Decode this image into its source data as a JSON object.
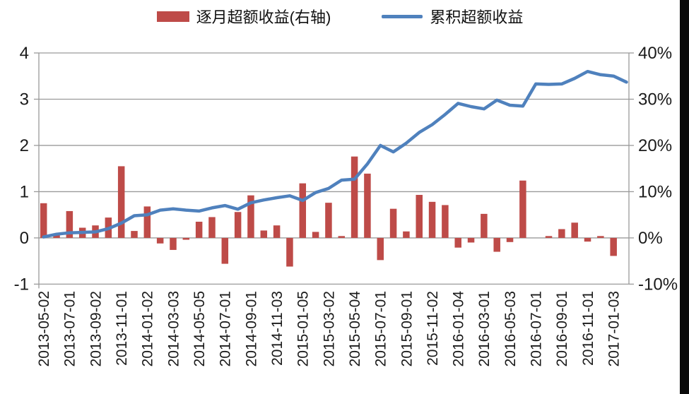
{
  "accent_colors": {
    "bar_red": "#be4b48",
    "line_blue": "#4f81bd",
    "grid_gray": "#9a9a9a",
    "text_dark": "#1a1a1a"
  },
  "legend": {
    "bar_series_label": "逐月超额收益(右轴)",
    "line_series_label": "累积超额收益"
  },
  "chart_data": {
    "type": "combo",
    "legend_position": "top",
    "grid": "horizontal",
    "categories": [
      "2013-05",
      "2013-06",
      "2013-07",
      "2013-08",
      "2013-09",
      "2013-10",
      "2013-11",
      "2013-12",
      "2014-01",
      "2014-02",
      "2014-03",
      "2014-04",
      "2014-05",
      "2014-06",
      "2014-07",
      "2014-08",
      "2014-09",
      "2014-10",
      "2014-11",
      "2014-12",
      "2015-01",
      "2015-02",
      "2015-03",
      "2015-04",
      "2015-05",
      "2015-06",
      "2015-07",
      "2015-08",
      "2015-09",
      "2015-10",
      "2015-11",
      "2015-12",
      "2016-01",
      "2016-02",
      "2016-03",
      "2016-04",
      "2016-05",
      "2016-06",
      "2016-07",
      "2016-08",
      "2016-09",
      "2016-10",
      "2016-11",
      "2016-12",
      "2017-01",
      "2017-02"
    ],
    "x_tick_labels": [
      "2013-05-02",
      "2013-07-01",
      "2013-09-02",
      "2013-11-01",
      "2014-01-02",
      "2014-03-03",
      "2014-05-05",
      "2014-07-01",
      "2014-09-01",
      "2014-11-03",
      "2015-01-05",
      "2015-03-02",
      "2015-05-04",
      "2015-07-01",
      "2015-09-01",
      "2015-11-02",
      "2016-01-04",
      "2016-03-01",
      "2016-05-03",
      "2016-07-01",
      "2016-09-01",
      "2016-11-01",
      "2017-01-03"
    ],
    "x_tick_every": 2,
    "series": [
      {
        "name": "逐月超额收益(右轴)",
        "type": "bar",
        "axis": "right",
        "unit": "%",
        "color": "#be4b48",
        "values": [
          7.5,
          0.9,
          5.8,
          2.2,
          2.7,
          4.4,
          15.5,
          1.5,
          6.8,
          -1.2,
          -2.6,
          -0.4,
          3.5,
          4.5,
          -5.6,
          5.6,
          9.2,
          1.6,
          2.7,
          -6.2,
          11.8,
          1.3,
          7.6,
          0.4,
          17.6,
          13.9,
          -4.8,
          6.3,
          1.4,
          9.3,
          7.8,
          7.1,
          -2.1,
          -1.0,
          5.2,
          -3.0,
          -0.9,
          12.4,
          0.0,
          0.4,
          1.9,
          3.3,
          -0.8,
          0.4,
          -3.9,
          0
        ]
      },
      {
        "name": "累积超额收益",
        "type": "line",
        "axis": "left",
        "color": "#4f81bd",
        "values": [
          0.02,
          0.08,
          0.11,
          0.12,
          0.13,
          0.2,
          0.32,
          0.48,
          0.5,
          0.6,
          0.63,
          0.6,
          0.58,
          0.65,
          0.7,
          0.62,
          0.76,
          0.82,
          0.87,
          0.91,
          0.81,
          0.98,
          1.07,
          1.25,
          1.27,
          1.6,
          2.0,
          1.86,
          2.05,
          2.28,
          2.45,
          2.67,
          2.91,
          2.84,
          2.79,
          2.98,
          2.87,
          2.85,
          3.33,
          3.32,
          3.33,
          3.45,
          3.6,
          3.53,
          3.5,
          3.37
        ]
      }
    ],
    "axes": {
      "left": {
        "min": -1,
        "max": 4,
        "ticks": [
          "4",
          "3",
          "2",
          "1",
          "0",
          "-1"
        ],
        "tick_values": [
          4,
          3,
          2,
          1,
          0,
          -1
        ]
      },
      "right": {
        "min": -10,
        "max": 40,
        "ticks": [
          "40%",
          "30%",
          "20%",
          "10%",
          "0%",
          "-10%"
        ],
        "tick_values": [
          40,
          30,
          20,
          10,
          0,
          -10
        ]
      }
    }
  }
}
